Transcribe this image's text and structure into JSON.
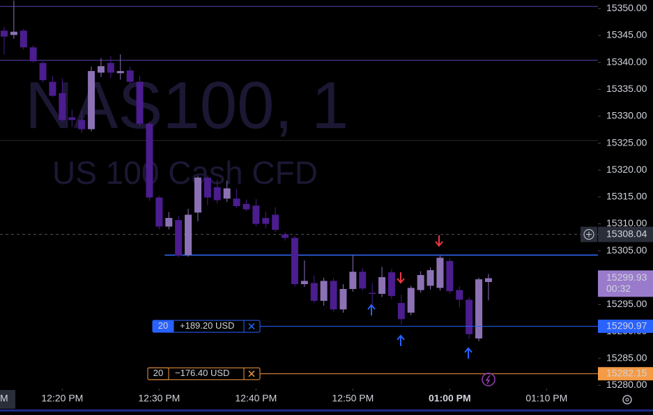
{
  "chart_data": {
    "type": "candlestick",
    "title": "NAS100, 1",
    "subtitle": "US 100 Cash CFD",
    "up_color": "#8c72b5",
    "down_color": "#4b1d8e",
    "open": [
      15345.9,
      15345.1,
      15345.9,
      15342.8,
      15339.9,
      15336.4,
      15334.3,
      15329.8,
      15329.3,
      15327.6,
      15338.1,
      15339.9,
      15338.0,
      15338.5,
      15336.4,
      15328.6,
      15314.9,
      15309.5,
      15310.7,
      15304.2,
      15312.1,
      15318.6,
      15316.8,
      15314.7,
      15314.7,
      15313.7,
      15313.4,
      15311.1,
      15311.7,
      15308.0,
      15307.4,
      15298.8,
      15299.0,
      15295.7,
      15299.4,
      15294.1,
      15297.9,
      15301.1,
      15297.2,
      15297.0,
      15301.0,
      15295.3,
      15293.5,
      15297.7,
      15298.5,
      15298.1,
      15303.1,
      15297.7,
      15295.9,
      15288.7,
      15299.2
    ],
    "high": [
      15346.6,
      15351.5,
      15346.2,
      15343.2,
      15340.2,
      15337.5,
      15337.0,
      15331.2,
      15331.0,
      15339.2,
      15340.8,
      15341.2,
      15341.5,
      15339.2,
      15337.5,
      15329.0,
      15315.2,
      15312.2,
      15311.5,
      15312.8,
      15318.9,
      15319.0,
      15318.2,
      15318.0,
      15316.4,
      15314.5,
      15314.6,
      15312.3,
      15313.1,
      15308.4,
      15307.8,
      15303.2,
      15300.4,
      15300.0,
      15299.9,
      15298.8,
      15304.2,
      15301.8,
      15299.0,
      15302.0,
      15301.6,
      15296.8,
      15298.5,
      15301.2,
      15301.9,
      15304.1,
      15303.6,
      15298.4,
      15296.4,
      15300.0,
      15300.7
    ],
    "low": [
      15341.5,
      15344.4,
      15342.4,
      15340.0,
      15336.3,
      15333.6,
      15328.9,
      15328.0,
      15326.9,
      15327.2,
      15337.3,
      15337.1,
      15336.8,
      15336.0,
      15328.2,
      15314.3,
      15309.0,
      15309.0,
      15303.8,
      15303.9,
      15310.5,
      15313.5,
      15313.8,
      15314.1,
      15312.9,
      15312.4,
      15309.6,
      15309.2,
      15308.5,
      15306.9,
      15298.4,
      15298.3,
      15295.3,
      15294.8,
      15293.7,
      15293.5,
      15297.4,
      15297.6,
      15295.0,
      15296.4,
      15296.0,
      15291.3,
      15293.0,
      15297.2,
      15297.8,
      15297.6,
      15297.0,
      15294.5,
      15288.6,
      15288.2,
      15295.8
    ],
    "close": [
      15344.8,
      15345.7,
      15342.8,
      15340.2,
      15336.7,
      15333.8,
      15329.3,
      15329.3,
      15327.6,
      15338.4,
      15339.3,
      15338.1,
      15338.4,
      15336.4,
      15328.6,
      15314.9,
      15309.5,
      15311.1,
      15304.1,
      15311.7,
      15318.6,
      15314.9,
      15314.4,
      15316.6,
      15313.3,
      15312.7,
      15310.0,
      15310.0,
      15308.9,
      15307.4,
      15298.8,
      15299.4,
      15295.7,
      15299.4,
      15294.1,
      15297.9,
      15301.1,
      15298.0,
      15297.0,
      15300.1,
      15296.6,
      15292.3,
      15298.1,
      15300.5,
      15301.4,
      15303.7,
      15297.5,
      15295.9,
      15289.5,
      15299.7,
      15299.9
    ],
    "xlim": [
      -0.43,
      61.3
    ],
    "xticks": [
      {
        "value": 6,
        "label": "12:20 PM"
      },
      {
        "value": 16,
        "label": "12:30 PM"
      },
      {
        "value": 26,
        "label": "12:40 PM"
      },
      {
        "value": 36,
        "label": "12:50 PM"
      },
      {
        "value": 46,
        "label": "01:00 PM",
        "bold": true
      },
      {
        "value": 56,
        "label": "01:10 PM"
      }
    ],
    "x_cut_label": "M",
    "ylim": [
      15279.4,
      15351.6
    ],
    "yticks": [
      {
        "value": 15280,
        "label": "15280.00"
      },
      {
        "value": 15285,
        "label": "15285.00"
      },
      {
        "value": 15290,
        "label": "15290.00"
      },
      {
        "value": 15295,
        "label": "15295.00"
      },
      {
        "value": 15300,
        "label": "15300.00"
      },
      {
        "value": 15305,
        "label": "15305.00"
      },
      {
        "value": 15310,
        "label": "15310.00"
      },
      {
        "value": 15315,
        "label": "15315.00"
      },
      {
        "value": 15320,
        "label": "15320.00"
      },
      {
        "value": 15325,
        "label": "15325.00"
      },
      {
        "value": 15330,
        "label": "15330.00"
      },
      {
        "value": 15335,
        "label": "15335.00"
      },
      {
        "value": 15340,
        "label": "15340.00"
      },
      {
        "value": 15345,
        "label": "15345.00"
      },
      {
        "value": 15350,
        "label": "15350.00"
      }
    ],
    "levels": [
      {
        "value": 15350.4,
        "color": "#5a3fa6"
      },
      {
        "value": 15340.4,
        "color": "#5a3fa6"
      },
      {
        "value": 15325.5,
        "color": "#2a2a2a"
      }
    ],
    "trend_line": {
      "value": 15304.2,
      "from": 17,
      "color": "#2f6bff"
    },
    "crosshair": 15308.04,
    "last_price": {
      "value": 15299.93,
      "countdown": "00:32",
      "color": "#9a7bcb"
    },
    "positions": [
      {
        "quantity": 20,
        "pnl": "+189.20 USD",
        "price": 15290.97,
        "color": "#2962ff",
        "pnl_color": "#22ab94"
      },
      {
        "quantity": 20,
        "pnl": "−176.40 USD",
        "price": 15282.15,
        "color": "#f59a45",
        "pnl_color": "#f59a45"
      }
    ]
  }
}
